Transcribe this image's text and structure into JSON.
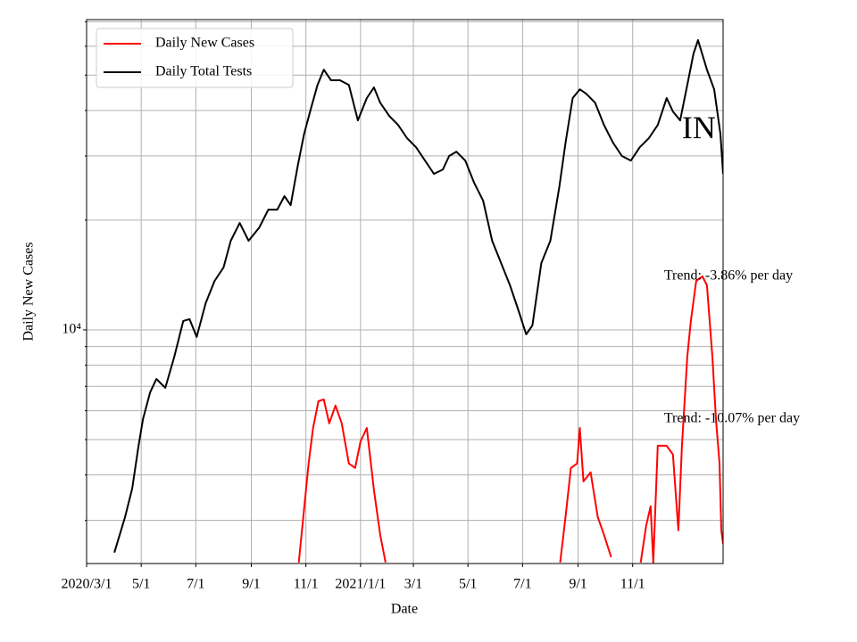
{
  "chart_data": {
    "type": "line",
    "xlabel": "Date",
    "ylabel": "Daily New Cases",
    "log_y": true,
    "grid": true,
    "legend": "upper left",
    "xlim": [
      "2020-03-01",
      "2022-02-10"
    ],
    "xticks": [
      {
        "value": "2020-03-01",
        "label": "2020/3/1"
      },
      {
        "value": "2020-05-01",
        "label": "5/1"
      },
      {
        "value": "2020-07-01",
        "label": "7/1"
      },
      {
        "value": "2020-09-01",
        "label": "9/1"
      },
      {
        "value": "2020-11-01",
        "label": "11/1"
      },
      {
        "value": "2021-01-01",
        "label": "2021/1/1"
      },
      {
        "value": "2021-03-01",
        "label": "3/1"
      },
      {
        "value": "2021-05-01",
        "label": "5/1"
      },
      {
        "value": "2021-07-01",
        "label": "7/1"
      },
      {
        "value": "2021-09-01",
        "label": "9/1"
      },
      {
        "value": "2021-11-01",
        "label": "11/1"
      }
    ],
    "ylim": [
      2285,
      71000
    ],
    "yticks": [
      {
        "value": 10000,
        "label": "10⁴"
      }
    ],
    "minor_yticks": [
      3000,
      4000,
      5000,
      6000,
      7000,
      8000,
      9000,
      20000,
      30000,
      40000,
      50000,
      60000,
      70000
    ],
    "annotations": [
      {
        "text": "Trend: -3.86% per day",
        "x": "2021-12-06",
        "y": 14020
      },
      {
        "text": "Trend: -10.07% per day",
        "x": "2021-12-06",
        "y": 5690
      },
      {
        "text": "IN",
        "x": "2021-12-26",
        "y": 35200
      }
    ],
    "series": [
      {
        "name": "Daily New Cases",
        "color": "#ff0000",
        "x": [
          "2020-10-24",
          "2020-11-04",
          "2020-11-09",
          "2020-11-15",
          "2020-11-21",
          "2020-11-27",
          "2020-12-04",
          "2020-12-11",
          "2020-12-19",
          "2020-12-26",
          "2021-01-01",
          "2021-01-08",
          "2021-01-16",
          "2021-01-23",
          "2021-01-29",
          "2021-05-01",
          "2021-08-12",
          "2021-08-18",
          "2021-08-24",
          "2021-08-31",
          "2021-09-03",
          "2021-09-07",
          "2021-09-15",
          "2021-09-23",
          "2021-09-30",
          "2021-10-08",
          "2021-10-20",
          "2021-11-10",
          "2021-11-16",
          "2021-11-21",
          "2021-11-24",
          "2021-11-29",
          "2021-12-09",
          "2021-12-16",
          "2021-12-22",
          "2021-12-26",
          "2022-01-01",
          "2022-01-05",
          "2022-01-11",
          "2022-01-18",
          "2022-01-23",
          "2022-01-29",
          "2022-02-02",
          "2022-02-06",
          "2022-02-08",
          "2022-02-10"
        ],
        "values": [
          2300,
          4300,
          5380,
          6370,
          6445,
          5540,
          6200,
          5540,
          4300,
          4180,
          4945,
          5380,
          3630,
          2740,
          2300,
          null,
          2300,
          3067,
          4180,
          4300,
          5380,
          3840,
          4065,
          3067,
          2740,
          2380,
          null,
          2300,
          2900,
          3280,
          2300,
          4808,
          4808,
          4550,
          2820,
          4808,
          8447,
          10580,
          13630,
          14020,
          13250,
          8447,
          5690,
          4300,
          2820,
          2590
        ]
      },
      {
        "name": "Daily Total Tests",
        "color": "#000000",
        "x": [
          "2020-04-01",
          "2020-04-13",
          "2020-04-21",
          "2020-04-28",
          "2020-05-03",
          "2020-05-11",
          "2020-05-18",
          "2020-05-28",
          "2020-06-07",
          "2020-06-17",
          "2020-06-24",
          "2020-07-02",
          "2020-07-12",
          "2020-07-22",
          "2020-08-01",
          "2020-08-09",
          "2020-08-19",
          "2020-08-29",
          "2020-09-10",
          "2020-09-20",
          "2020-09-30",
          "2020-10-08",
          "2020-10-15",
          "2020-10-23",
          "2020-10-30",
          "2020-11-07",
          "2020-11-14",
          "2020-11-21",
          "2020-11-29",
          "2020-12-09",
          "2020-12-19",
          "2020-12-29",
          "2021-01-08",
          "2021-01-16",
          "2021-01-23",
          "2021-02-02",
          "2021-02-12",
          "2021-02-22",
          "2021-03-04",
          "2021-03-14",
          "2021-03-24",
          "2021-04-03",
          "2021-04-10",
          "2021-04-18",
          "2021-04-28",
          "2021-05-08",
          "2021-05-18",
          "2021-05-28",
          "2021-06-07",
          "2021-06-17",
          "2021-06-27",
          "2021-07-05",
          "2021-07-12",
          "2021-07-22",
          "2021-08-01",
          "2021-08-11",
          "2021-08-18",
          "2021-08-26",
          "2021-09-03",
          "2021-09-10",
          "2021-09-20",
          "2021-09-30",
          "2021-10-10",
          "2021-10-20",
          "2021-10-30",
          "2021-11-09",
          "2021-11-19",
          "2021-11-29",
          "2021-12-09",
          "2021-12-16",
          "2021-12-24",
          "2022-01-01",
          "2022-01-08",
          "2022-01-13",
          "2022-01-23",
          "2022-01-31",
          "2022-02-07",
          "2022-02-10"
        ],
        "values": [
          2449,
          3067,
          3670,
          4808,
          5694,
          6745,
          7335,
          6934,
          8447,
          10580,
          10700,
          9560,
          11840,
          13630,
          14830,
          17560,
          19640,
          17560,
          19100,
          21380,
          21380,
          23270,
          21990,
          28330,
          34510,
          40840,
          47000,
          51760,
          48400,
          48400,
          47000,
          37560,
          43250,
          46240,
          42000,
          38630,
          36490,
          33570,
          31700,
          29140,
          26790,
          27540,
          29990,
          30830,
          29140,
          25300,
          22620,
          17560,
          15250,
          13250,
          11190,
          9720,
          10290,
          15250,
          17560,
          24620,
          32610,
          43250,
          45710,
          44460,
          42000,
          36490,
          32610,
          29990,
          29140,
          31700,
          33570,
          36490,
          43250,
          39720,
          37560,
          47000,
          57280,
          62370,
          51760,
          45710,
          34510,
          26790
        ]
      }
    ]
  }
}
